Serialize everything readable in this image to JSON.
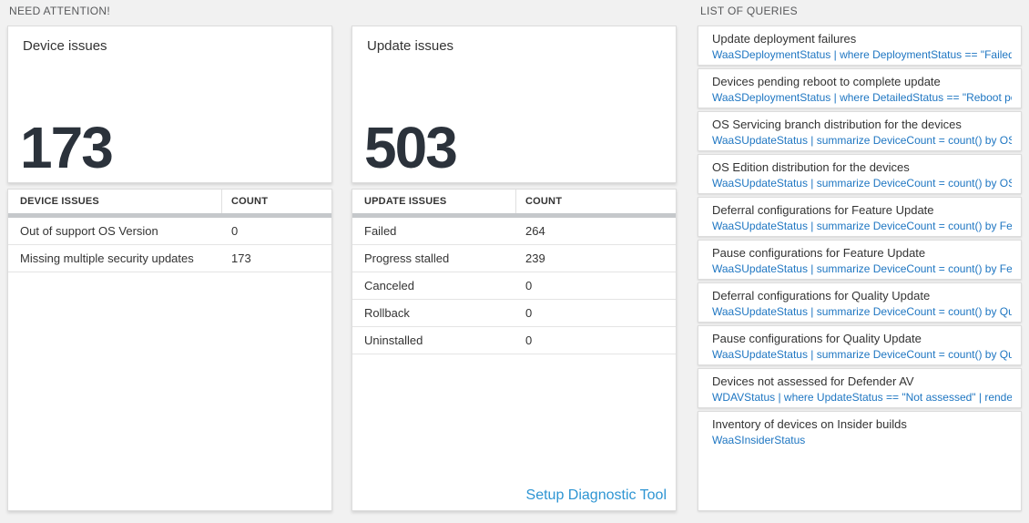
{
  "sections": {
    "need_attention": "NEED ATTENTION!",
    "list_of_queries": "LIST OF QUERIES"
  },
  "device_card": {
    "title": "Device issues",
    "value": "173"
  },
  "device_table": {
    "headers": {
      "name": "DEVICE ISSUES",
      "count": "COUNT"
    },
    "rows": [
      {
        "label": "Out of support OS Version",
        "count": "0"
      },
      {
        "label": "Missing multiple security updates",
        "count": "173"
      }
    ]
  },
  "update_card": {
    "title": "Update issues",
    "value": "503"
  },
  "update_table": {
    "headers": {
      "name": "UPDATE ISSUES",
      "count": "COUNT"
    },
    "rows": [
      {
        "label": "Failed",
        "count": "264"
      },
      {
        "label": "Progress stalled",
        "count": "239"
      },
      {
        "label": "Canceled",
        "count": "0"
      },
      {
        "label": "Rollback",
        "count": "0"
      },
      {
        "label": "Uninstalled",
        "count": "0"
      }
    ],
    "link": "Setup Diagnostic Tool"
  },
  "queries": [
    {
      "title": "Update deployment failures",
      "query": "WaaSDeploymentStatus | where DeploymentStatus == \"Failed\" |..."
    },
    {
      "title": "Devices pending reboot to complete update",
      "query": "WaaSDeploymentStatus | where DetailedStatus == \"Reboot pend..."
    },
    {
      "title": "OS Servicing branch distribution for the devices",
      "query": "WaaSUpdateStatus | summarize DeviceCount = count() by OSSer..."
    },
    {
      "title": "OS Edition distribution for the devices",
      "query": "WaaSUpdateStatus | summarize DeviceCount = count() by OSEdit..."
    },
    {
      "title": "Deferral configurations for Feature Update",
      "query": "WaaSUpdateStatus | summarize DeviceCount = count() by Featur..."
    },
    {
      "title": "Pause configurations for Feature Update",
      "query": "WaaSUpdateStatus | summarize DeviceCount = count() by Featur..."
    },
    {
      "title": "Deferral configurations for Quality Update",
      "query": "WaaSUpdateStatus | summarize DeviceCount = count() by Qualit..."
    },
    {
      "title": "Pause configurations for Quality Update",
      "query": "WaaSUpdateStatus | summarize DeviceCount = count() by Qualit..."
    },
    {
      "title": "Devices not assessed for Defender AV",
      "query": "WDAVStatus | where UpdateStatus == \"Not assessed\" | render ta..."
    },
    {
      "title": "Inventory of devices on Insider builds",
      "query": "WaaSInsiderStatus"
    }
  ],
  "colors": {
    "page_background": "#f1f1f1",
    "query_text_blue": "#1e76c2",
    "link_blue": "#2e95d3",
    "big_number": "#2b323b",
    "scrollbar_gray": "#c5c8cb"
  }
}
